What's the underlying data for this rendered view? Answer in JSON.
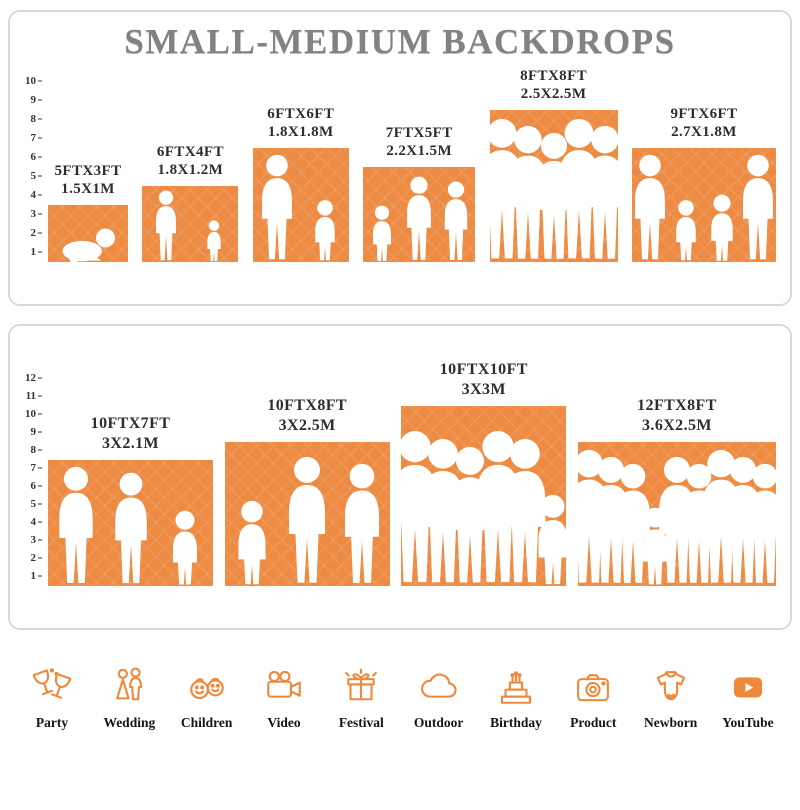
{
  "title": "SMALL-MEDIUM BACKDROPS",
  "colors": {
    "bar": "#ED8B43",
    "icon": "#F0883B",
    "title": "#828282",
    "label": "#2d2d2d"
  },
  "chart_data": [
    {
      "type": "bar",
      "title": "SMALL-MEDIUM BACKDROPS",
      "ylim": [
        0,
        10
      ],
      "ticks": [
        1,
        2,
        3,
        4,
        5,
        6,
        7,
        8,
        9,
        10
      ],
      "bars": [
        {
          "ft": "5FTX3FT",
          "m": "1.5X1M",
          "width_ft": 5,
          "height_ft": 3,
          "figures": [
            "baby"
          ]
        },
        {
          "ft": "6FTX4FT",
          "m": "1.8X1.2M",
          "width_ft": 6,
          "height_ft": 4,
          "figures": [
            "adult",
            "child"
          ]
        },
        {
          "ft": "6FTX6FT",
          "m": "1.8X1.8M",
          "width_ft": 6,
          "height_ft": 6,
          "figures": [
            "adult",
            "child"
          ]
        },
        {
          "ft": "7FTX5FT",
          "m": "2.2X1.5M",
          "width_ft": 7,
          "height_ft": 5,
          "figures": [
            "child",
            "adult",
            "adult"
          ]
        },
        {
          "ft": "8FTX8FT",
          "m": "2.5X2.5M",
          "width_ft": 8,
          "height_ft": 8,
          "figures": [
            "adult",
            "adult",
            "adult",
            "adult",
            "adult"
          ]
        },
        {
          "ft": "9FTX6FT",
          "m": "2.7X1.8M",
          "width_ft": 9,
          "height_ft": 6,
          "figures": [
            "adult",
            "child",
            "child",
            "adult"
          ]
        }
      ]
    },
    {
      "type": "bar",
      "ylim": [
        0,
        12
      ],
      "ticks": [
        1,
        2,
        3,
        4,
        5,
        6,
        7,
        8,
        9,
        10,
        11,
        12
      ],
      "bars": [
        {
          "ft": "10FTX7FT",
          "m": "3X2.1M",
          "width_ft": 10,
          "height_ft": 7,
          "figures": [
            "adult",
            "adult",
            "child"
          ]
        },
        {
          "ft": "10FTX8FT",
          "m": "3X2.5M",
          "width_ft": 10,
          "height_ft": 8,
          "figures": [
            "child",
            "adult",
            "adult"
          ]
        },
        {
          "ft": "10FTX10FT",
          "m": "3X3M",
          "width_ft": 10,
          "height_ft": 10,
          "figures": [
            "adult",
            "adult",
            "adult",
            "adult",
            "adult",
            "child"
          ]
        },
        {
          "ft": "12FTX8FT",
          "m": "3.6X2.5M",
          "width_ft": 12,
          "height_ft": 8,
          "figures": [
            "adult",
            "adult",
            "adult",
            "child",
            "adult",
            "adult",
            "adult",
            "adult",
            "adult"
          ]
        }
      ]
    }
  ],
  "categories": [
    {
      "label": "Party",
      "icon": "party-icon"
    },
    {
      "label": "Wedding",
      "icon": "wedding-icon"
    },
    {
      "label": "Children",
      "icon": "children-icon"
    },
    {
      "label": "Video",
      "icon": "video-icon"
    },
    {
      "label": "Festival",
      "icon": "festival-icon"
    },
    {
      "label": "Outdoor",
      "icon": "outdoor-icon"
    },
    {
      "label": "Birthday",
      "icon": "birthday-icon"
    },
    {
      "label": "Product",
      "icon": "product-icon"
    },
    {
      "label": "Newborn",
      "icon": "newborn-icon"
    },
    {
      "label": "YouTube",
      "icon": "youtube-icon"
    }
  ]
}
